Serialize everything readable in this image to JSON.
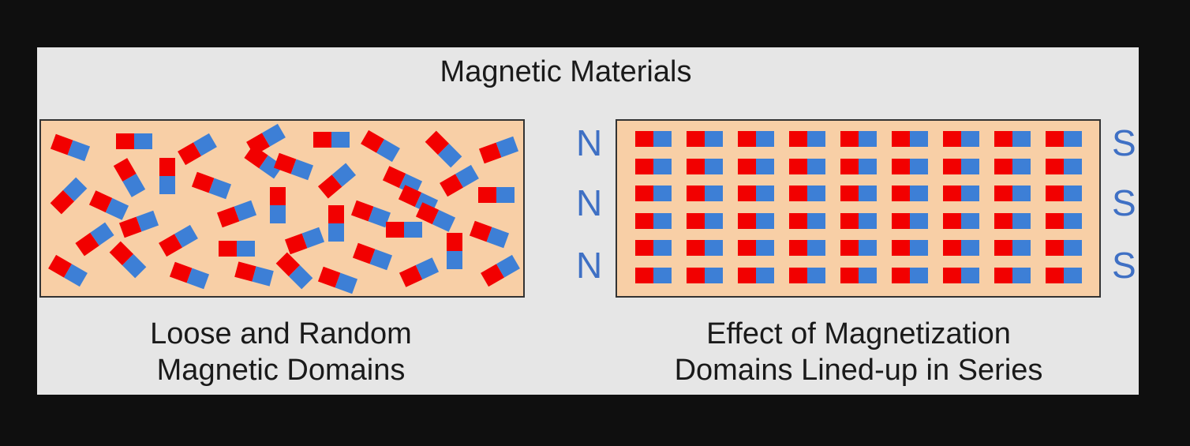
{
  "title": "Magnetic Materials",
  "left_panel": {
    "caption_line1": "Loose and Random",
    "caption_line2": "Magnetic Domains"
  },
  "right_panel": {
    "caption_line1": "Effect of Magnetization",
    "caption_line2": "Domains Lined-up in Series",
    "north_labels": [
      "N",
      "N",
      "N"
    ],
    "south_labels": [
      "S",
      "S",
      "S"
    ],
    "rows": 6,
    "columns": 9
  },
  "colors": {
    "north_pole": "#f20000",
    "south_pole": "#3d7fd6",
    "material": "#f8cfa6",
    "background": "#e6e6e6",
    "pole_label": "#3f70c4"
  },
  "icons": [
    "bar-magnet-icon"
  ]
}
